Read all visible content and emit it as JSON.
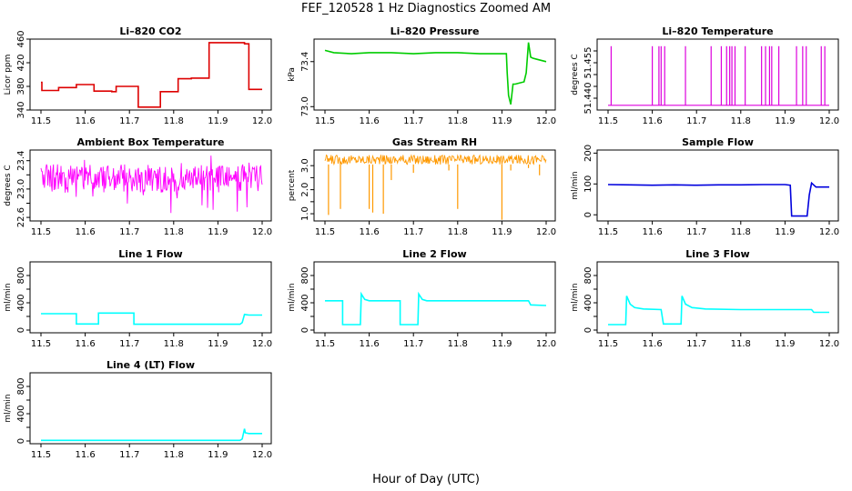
{
  "figure": {
    "title": "FEF_120528  1 Hz Diagnostics Zoomed AM",
    "xlabel": "Hour of Day (UTC)"
  },
  "chart_data": [
    {
      "type": "line",
      "title": "Li–820 CO2",
      "xlabel": "",
      "ylabel": "Licor ppm",
      "xlim": [
        11.5,
        12.0
      ],
      "ylim": [
        340,
        460
      ],
      "x_ticks": [
        "11.5",
        "11.6",
        "11.7",
        "11.8",
        "11.9",
        "12.0"
      ],
      "y_ticks": [
        "340",
        "380",
        "420",
        "460"
      ],
      "y_tick_values": [
        340,
        380,
        420,
        460
      ],
      "color": "#dd0000",
      "series": [
        {
          "x": [
            11.5,
            11.502,
            11.502,
            11.54,
            11.54,
            11.58,
            11.58,
            11.62,
            11.62,
            11.66,
            11.66,
            11.67,
            11.67,
            11.72,
            11.72,
            11.77,
            11.77,
            11.81,
            11.81,
            11.84,
            11.84,
            11.88,
            11.88,
            11.96,
            11.96,
            11.97,
            11.97,
            12.0
          ],
          "y": [
            387,
            387,
            373,
            373,
            378,
            378,
            383,
            383,
            372,
            372,
            371,
            371,
            380,
            380,
            345,
            345,
            371,
            371,
            393,
            393,
            394,
            394,
            454,
            454,
            452,
            452,
            375,
            375
          ]
        }
      ]
    },
    {
      "type": "line",
      "title": "Li–820 Pressure",
      "xlabel": "",
      "ylabel": "kPa",
      "xlim": [
        11.5,
        12.0
      ],
      "ylim": [
        72.97,
        73.6
      ],
      "x_ticks": [
        "11.5",
        "11.6",
        "11.7",
        "11.8",
        "11.9",
        "12.0"
      ],
      "y_ticks": [
        "73.0",
        "73.4"
      ],
      "y_tick_values": [
        73.0,
        73.4
      ],
      "color": "#00cc00",
      "series": [
        {
          "x": [
            11.5,
            11.52,
            11.56,
            11.6,
            11.65,
            11.7,
            11.75,
            11.8,
            11.85,
            11.9,
            11.91,
            11.912,
            11.915,
            11.92,
            11.925,
            11.93,
            11.95,
            11.955,
            11.96,
            11.965,
            11.97,
            11.98,
            12.0
          ],
          "y": [
            73.5,
            73.48,
            73.47,
            73.48,
            73.48,
            73.47,
            73.48,
            73.48,
            73.47,
            73.47,
            73.47,
            73.3,
            73.1,
            73.02,
            73.2,
            73.2,
            73.22,
            73.3,
            73.57,
            73.44,
            73.43,
            73.42,
            73.4
          ]
        }
      ]
    },
    {
      "type": "line",
      "title": "Li–820 Temperature",
      "xlabel": "",
      "ylabel": "degrees C",
      "xlim": [
        11.5,
        12.0
      ],
      "ylim": [
        51.435,
        51.465
      ],
      "x_ticks": [
        "11.5",
        "11.6",
        "11.7",
        "11.8",
        "11.9",
        "12.0"
      ],
      "y_ticks": [
        "51.440",
        "51.455"
      ],
      "y_tick_values": [
        51.44,
        51.455
      ],
      "y_ticks_minor": [
        51.445,
        51.45,
        51.46
      ],
      "color": "#dd00dd",
      "base": 51.437,
      "spike_top": 51.462,
      "spikes_x": [
        11.507,
        11.6,
        11.615,
        11.62,
        11.628,
        11.675,
        11.733,
        11.756,
        11.768,
        11.775,
        11.78,
        11.787,
        11.81,
        11.847,
        11.856,
        11.865,
        11.87,
        11.886,
        11.926,
        11.94,
        11.948,
        11.982,
        11.99
      ]
    },
    {
      "type": "line",
      "title": "Ambient Box Temperature",
      "xlabel": "",
      "ylabel": "degrees C",
      "xlim": [
        11.5,
        12.0
      ],
      "ylim": [
        22.55,
        23.55
      ],
      "x_ticks": [
        "11.5",
        "11.6",
        "11.7",
        "11.8",
        "11.9",
        "12.0"
      ],
      "y_ticks": [
        "22.6",
        "23.0",
        "23.4"
      ],
      "y_tick_values": [
        22.6,
        23.0,
        23.4
      ],
      "y_ticks_minor": [
        22.8,
        23.2
      ],
      "color": "#ff00ff",
      "band": [
        22.95,
        23.35
      ],
      "noise_range": [
        22.65,
        23.5
      ]
    },
    {
      "type": "line",
      "title": "Gas Stream RH",
      "xlabel": "",
      "ylabel": "percent",
      "xlim": [
        11.5,
        12.0
      ],
      "ylim": [
        0.7,
        3.65
      ],
      "x_ticks": [
        "11.5",
        "11.6",
        "11.7",
        "11.8",
        "11.9",
        "12.0"
      ],
      "y_ticks": [
        "1.0",
        "2.0",
        "3.0"
      ],
      "y_tick_values": [
        1.0,
        2.0,
        3.0
      ],
      "y_ticks_minor": [
        1.5,
        2.5
      ],
      "color": "#ff9900",
      "band": [
        3.05,
        3.45
      ],
      "dips": [
        [
          11.508,
          0.95
        ],
        [
          11.535,
          1.2
        ],
        [
          11.6,
          1.2
        ],
        [
          11.608,
          1.05
        ],
        [
          11.632,
          1.0
        ],
        [
          11.65,
          2.4
        ],
        [
          11.7,
          2.7
        ],
        [
          11.78,
          2.8
        ],
        [
          11.8,
          1.2
        ],
        [
          11.9,
          0.75
        ],
        [
          11.92,
          2.8
        ],
        [
          11.96,
          2.9
        ],
        [
          11.985,
          2.6
        ]
      ]
    },
    {
      "type": "line",
      "title": "Sample Flow",
      "xlabel": "",
      "ylabel": "ml/min",
      "xlim": [
        11.5,
        12.0
      ],
      "ylim": [
        -20,
        210
      ],
      "x_ticks": [
        "11.5",
        "11.6",
        "11.7",
        "11.8",
        "11.9",
        "12.0"
      ],
      "y_ticks": [
        "0",
        "100",
        "200"
      ],
      "y_tick_values": [
        0,
        100,
        200
      ],
      "color": "#0000dd",
      "series": [
        {
          "x": [
            11.5,
            11.55,
            11.6,
            11.65,
            11.7,
            11.75,
            11.8,
            11.85,
            11.9,
            11.912,
            11.915,
            11.95,
            11.955,
            11.96,
            11.97,
            12.0
          ],
          "y": [
            98,
            97,
            96,
            97,
            96,
            97,
            97,
            98,
            98,
            96,
            -4,
            -4,
            65,
            103,
            90,
            90
          ]
        }
      ]
    },
    {
      "type": "line",
      "title": "Line 1 Flow",
      "xlabel": "",
      "ylabel": "ml/min",
      "xlim": [
        11.5,
        12.0
      ],
      "ylim": [
        -40,
        1000
      ],
      "x_ticks": [
        "11.5",
        "11.6",
        "11.7",
        "11.8",
        "11.9",
        "12.0"
      ],
      "y_ticks": [
        "0",
        "400",
        "800"
      ],
      "y_tick_values": [
        0,
        400,
        800
      ],
      "y_ticks_minor": [
        200,
        600
      ],
      "color": "#00ffff",
      "series": [
        {
          "x": [
            11.5,
            11.58,
            11.58,
            11.63,
            11.63,
            11.71,
            11.71,
            11.95,
            11.955,
            11.96,
            11.97,
            12.0
          ],
          "y": [
            240,
            240,
            90,
            90,
            250,
            250,
            85,
            85,
            110,
            230,
            220,
            220
          ]
        }
      ]
    },
    {
      "type": "line",
      "title": "Line 2 Flow",
      "xlabel": "",
      "ylabel": "ml/min",
      "xlim": [
        11.5,
        12.0
      ],
      "ylim": [
        -40,
        1000
      ],
      "x_ticks": [
        "11.5",
        "11.6",
        "11.7",
        "11.8",
        "11.9",
        "12.0"
      ],
      "y_ticks": [
        "0",
        "400",
        "800"
      ],
      "y_tick_values": [
        0,
        400,
        800
      ],
      "y_ticks_minor": [
        200,
        600
      ],
      "color": "#00ffff",
      "series": [
        {
          "x": [
            11.5,
            11.54,
            11.54,
            11.58,
            11.582,
            11.59,
            11.6,
            11.67,
            11.67,
            11.71,
            11.712,
            11.72,
            11.73,
            11.96,
            11.965,
            12.0
          ],
          "y": [
            430,
            430,
            80,
            80,
            530,
            450,
            430,
            430,
            80,
            80,
            530,
            450,
            430,
            430,
            370,
            360
          ]
        }
      ]
    },
    {
      "type": "line",
      "title": "Line 3 Flow",
      "xlabel": "",
      "ylabel": "ml/min",
      "xlim": [
        11.5,
        12.0
      ],
      "ylim": [
        -40,
        1000
      ],
      "x_ticks": [
        "11.5",
        "11.6",
        "11.7",
        "11.8",
        "11.9",
        "12.0"
      ],
      "y_ticks": [
        "0",
        "400",
        "800"
      ],
      "y_tick_values": [
        0,
        400,
        800
      ],
      "y_ticks_minor": [
        200,
        600
      ],
      "color": "#00ffff",
      "series": [
        {
          "x": [
            11.5,
            11.54,
            11.542,
            11.55,
            11.56,
            11.58,
            11.62,
            11.625,
            11.625,
            11.665,
            11.667,
            11.675,
            11.69,
            11.72,
            11.8,
            11.96,
            11.965,
            12.0
          ],
          "y": [
            80,
            80,
            500,
            380,
            330,
            310,
            300,
            90,
            90,
            90,
            500,
            380,
            330,
            310,
            300,
            300,
            260,
            260
          ]
        }
      ]
    },
    {
      "type": "line",
      "title": "Line 4 (LT) Flow",
      "xlabel": "",
      "ylabel": "ml/min",
      "xlim": [
        11.5,
        12.0
      ],
      "ylim": [
        -40,
        1000
      ],
      "x_ticks": [
        "11.5",
        "11.6",
        "11.7",
        "11.8",
        "11.9",
        "12.0"
      ],
      "y_ticks": [
        "0",
        "400",
        "800"
      ],
      "y_tick_values": [
        0,
        400,
        800
      ],
      "y_ticks_minor": [
        200,
        600
      ],
      "color": "#00ffff",
      "series": [
        {
          "x": [
            11.5,
            11.95,
            11.955,
            11.96,
            11.962,
            11.97,
            12.0
          ],
          "y": [
            10,
            10,
            30,
            180,
            120,
            110,
            110
          ]
        }
      ]
    }
  ]
}
